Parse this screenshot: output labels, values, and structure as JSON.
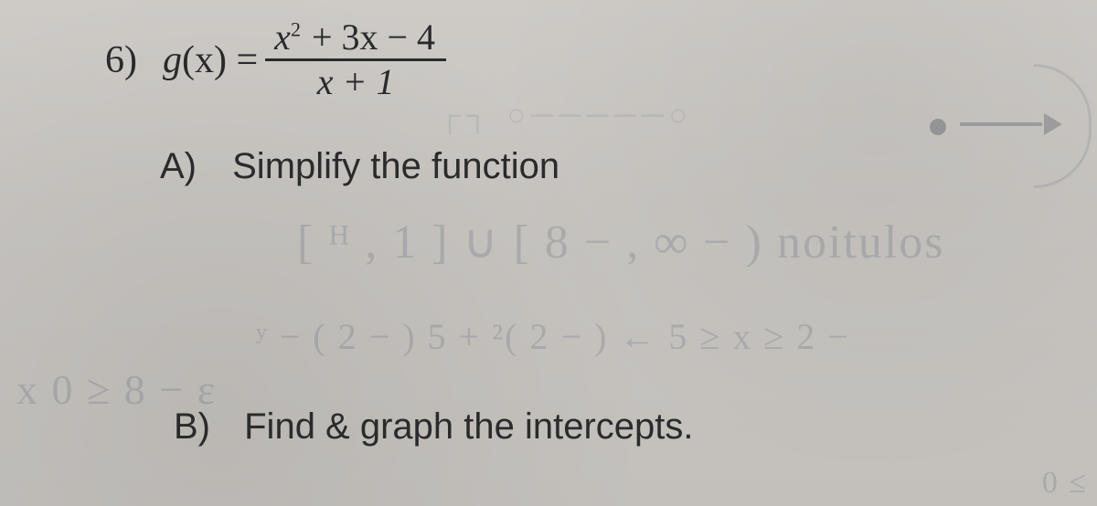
{
  "background_color": "#cac7c4",
  "text_color": "#2a2a2a",
  "ghost_color": "rgba(70,80,100,0.20)",
  "problem": {
    "number": "6)",
    "func_lhs_g": "g",
    "func_lhs_x": "(x) =",
    "numerator_x": "x",
    "numerator_sq": "2",
    "numerator_rest": " + 3x − 4",
    "denominator": "x + 1"
  },
  "partA": {
    "label": "A)",
    "text": "Simplify the function"
  },
  "partB": {
    "label": "B)",
    "text": "Find & graph the intercepts."
  },
  "ghost": {
    "line1": "[ ᴴ , 1 ] ∪ [ 8 − , ∞ − )  noitulos",
    "line2": "ʸ − ( 2 − ) 5 + ²( 2 − )  ←  5  ≥  x ≥  2 −",
    "line3": "x  0 ≥ 8 −   ɛ",
    "line4": "0 ≤",
    "topband": "┌┐  ○─────○"
  },
  "fonts": {
    "serif": "Georgia, 'Times New Roman', serif",
    "sans": "'Segoe UI', Arial, sans-serif",
    "script": "'Comic Sans MS','Segoe Script',cursive"
  }
}
